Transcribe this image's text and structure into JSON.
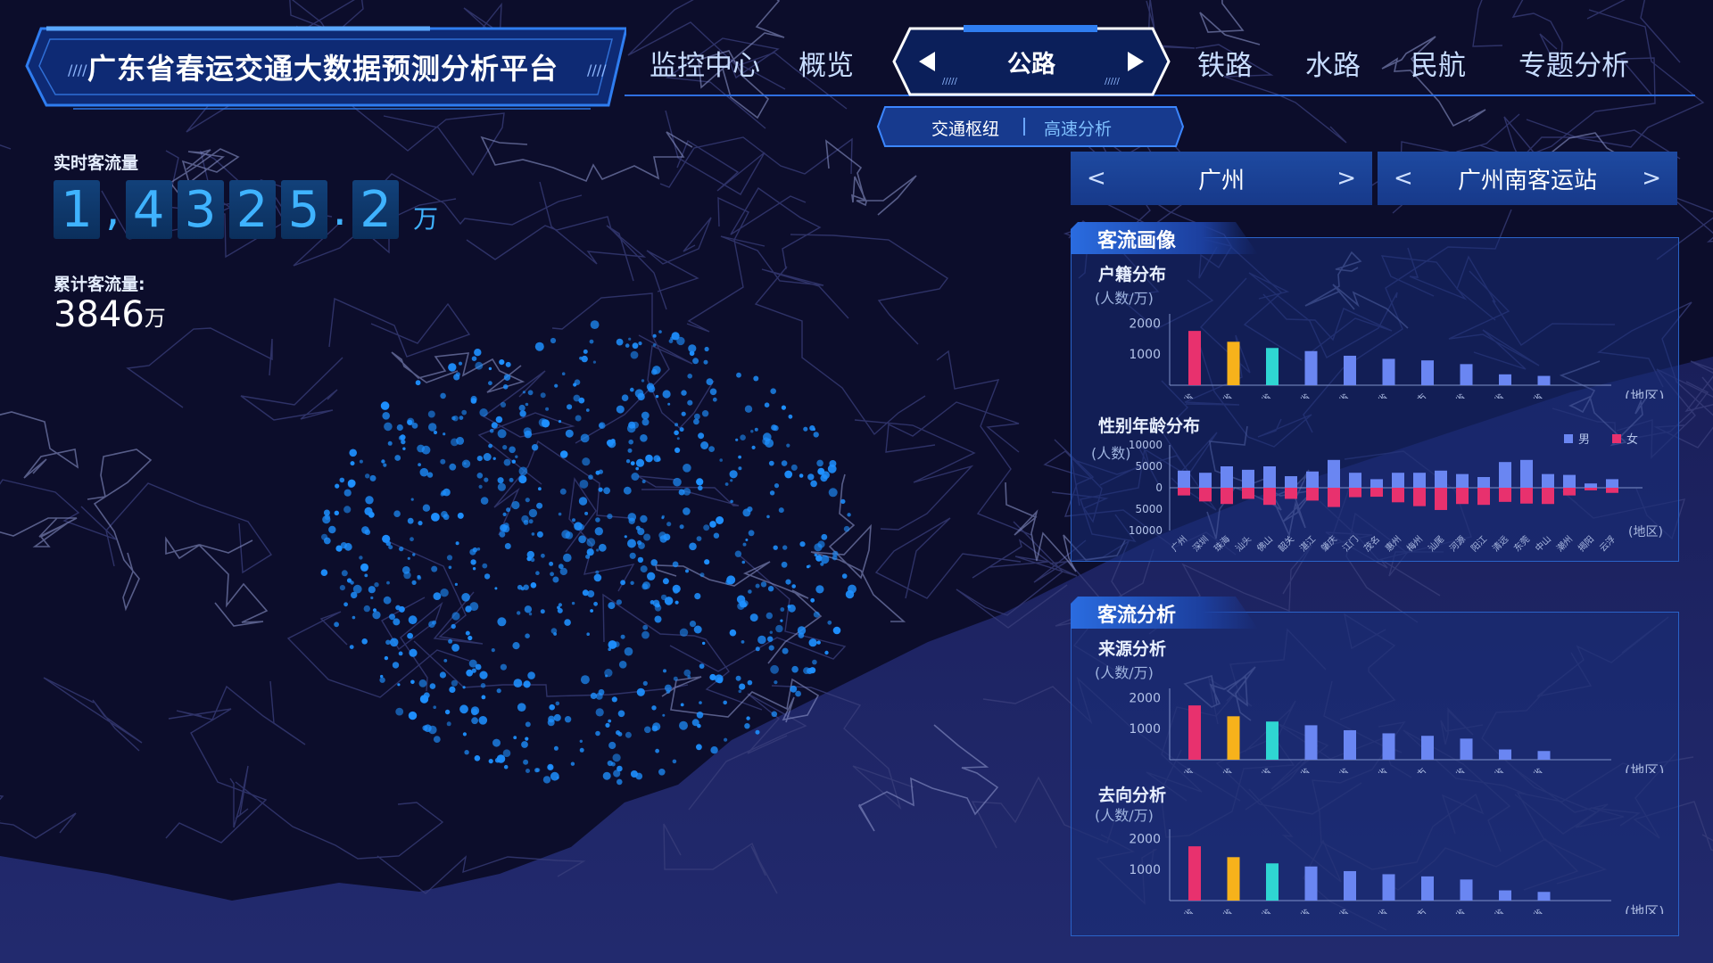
{
  "header": {
    "title": "广东省春运交通大数据预测分析平台",
    "nav_items": [
      "监控中心",
      "概览",
      "公路",
      "铁路",
      "水路",
      "民航",
      "专题分析"
    ],
    "active_nav": "公路",
    "sub_tabs": [
      "交通枢纽",
      "高速分析"
    ]
  },
  "realtime": {
    "label": "实时客流量",
    "digits": [
      "1",
      ",",
      "4",
      "3",
      "2",
      "5",
      ".",
      "2"
    ],
    "unit": "万"
  },
  "cumulative": {
    "label": "累计客流量:",
    "value": "3846",
    "unit": "万"
  },
  "selectors": {
    "city": "广州",
    "station": "广州南客运站",
    "prev": "<",
    "next": ">"
  },
  "colors": {
    "background": "#0c0d2b",
    "accent": "#2a6ce0",
    "bar_pink": "#e8316e",
    "bar_orange": "#f7b21b",
    "bar_cyan": "#2fd6d2",
    "bar_blue": "#6a86f2",
    "male": "#6a86f2",
    "female": "#e8316e",
    "dots": "#1e90ff"
  },
  "panels": {
    "profile": {
      "title": "客流画像",
      "household": {
        "title": "户籍分布",
        "unit": "(人数/万)",
        "xunit": "(地区)"
      },
      "gender_age": {
        "title": "性别年龄分布",
        "unit": "(人数)",
        "xunit": "(地区)",
        "legend": [
          "男",
          "女"
        ]
      }
    },
    "analysis": {
      "title": "客流分析",
      "origin": {
        "title": "来源分析",
        "unit": "(人数/万)",
        "xunit": "(地区)"
      },
      "destination": {
        "title": "去向分析",
        "unit": "(人数/万)",
        "xunit": "(地区)"
      }
    }
  },
  "chart_data": [
    {
      "type": "bar",
      "title": "户籍分布",
      "ylabel": "(人数/万)",
      "xlabel": "(地区)",
      "categories": [
        "广西省",
        "湖南省",
        "江苏省",
        "江西省",
        "福建省",
        "河南省",
        "上海市",
        "山东省",
        "湖北省",
        "浙江省"
      ],
      "values": [
        1750,
        1400,
        1200,
        1100,
        950,
        850,
        800,
        680,
        350,
        300
      ],
      "yticks": [
        1000,
        2000
      ],
      "ylim": [
        0,
        2300
      ]
    },
    {
      "type": "bar",
      "title": "性别年龄分布",
      "ylabel": "(人数)",
      "xlabel": "(地区)",
      "categories": [
        "广州",
        "深圳",
        "珠海",
        "汕头",
        "佛山",
        "韶关",
        "湛江",
        "肇庆",
        "江门",
        "茂名",
        "惠州",
        "梅州",
        "汕尾",
        "河源",
        "阳江",
        "清远",
        "东莞",
        "中山",
        "潮州",
        "揭阳",
        "云浮"
      ],
      "series": [
        {
          "name": "男",
          "values": [
            4000,
            3500,
            5000,
            4200,
            5000,
            2700,
            3800,
            6500,
            3500,
            2000,
            3500,
            3500,
            4000,
            3200,
            2500,
            6000,
            6500,
            3200,
            3000,
            1000,
            2000
          ]
        },
        {
          "name": "女",
          "values": [
            -1800,
            -3200,
            -3800,
            -2600,
            -4000,
            -2600,
            -3000,
            -4500,
            -2200,
            -2100,
            -3400,
            -4300,
            -5200,
            -3800,
            -4000,
            -3300,
            -3700,
            -3800,
            -1800,
            -600,
            -1200
          ]
        }
      ],
      "yticks": [
        10000,
        5000,
        0,
        5000,
        10000
      ],
      "ylim": [
        -10000,
        10000
      ]
    },
    {
      "type": "bar",
      "title": "来源分析",
      "ylabel": "(人数/万)",
      "xlabel": "(地区)",
      "categories": [
        "广西省",
        "湖南省",
        "江苏省",
        "江西省",
        "福建省",
        "河南省",
        "上海市",
        "山东省",
        "湖北省",
        "浙江省"
      ],
      "values": [
        1750,
        1400,
        1230,
        1110,
        950,
        850,
        770,
        680,
        330,
        280
      ],
      "yticks": [
        1000,
        2000
      ],
      "ylim": [
        0,
        2300
      ]
    },
    {
      "type": "bar",
      "title": "去向分析",
      "ylabel": "(人数/万)",
      "xlabel": "(地区)",
      "categories": [
        "广西省",
        "湖南省",
        "江苏省",
        "江西省",
        "福建省",
        "河南省",
        "上海市",
        "山东省",
        "湖北省",
        "浙江省"
      ],
      "values": [
        1750,
        1400,
        1200,
        1100,
        950,
        850,
        780,
        680,
        330,
        280
      ],
      "yticks": [
        1000,
        2000
      ],
      "ylim": [
        0,
        2300
      ]
    }
  ]
}
